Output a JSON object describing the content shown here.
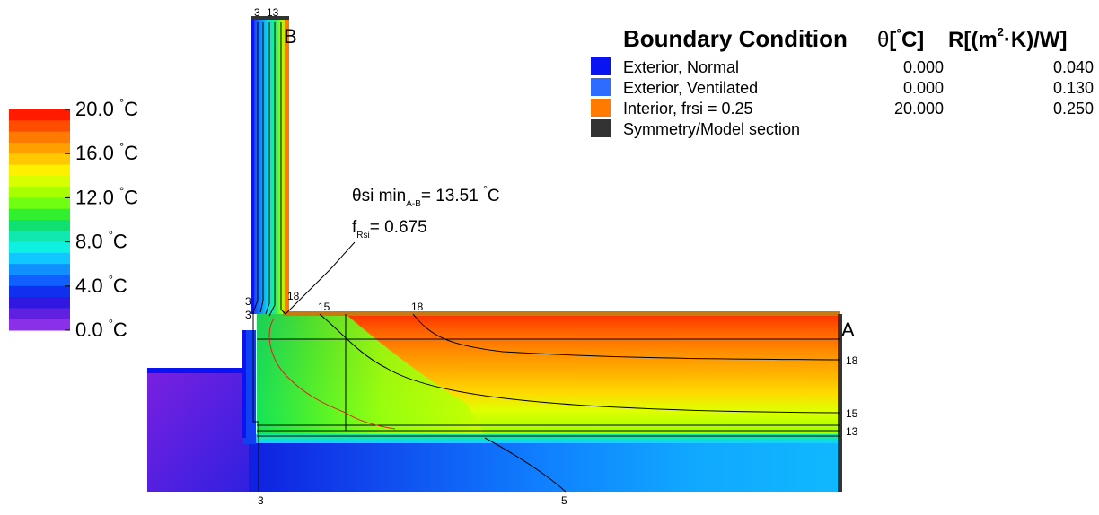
{
  "legend": {
    "header": {
      "title": "Boundary Condition",
      "theta_symbol": "θ",
      "theta_unit_open": "[",
      "theta_unit_deg": "°",
      "theta_unit_close": "C]",
      "r_label_a": "R[(m",
      "r_label_sup": "2",
      "r_label_b": "·K)/W]"
    },
    "rows": [
      {
        "name": "Exterior, Normal",
        "theta": "0.000",
        "r": "0.040",
        "color": "#0a14f0"
      },
      {
        "name": "Exterior, Ventilated",
        "theta": "0.000",
        "r": "0.130",
        "color": "#2e6cff"
      },
      {
        "name": "Interior, frsi = 0.25",
        "theta": "20.000",
        "r": "0.250",
        "color": "#ff7a00"
      },
      {
        "name": "Symmetry/Model section",
        "theta": "",
        "r": "",
        "color": "#333333"
      }
    ]
  },
  "color_scale": {
    "labels": [
      {
        "value": "20.0",
        "unit": "C",
        "deg": "°"
      },
      {
        "value": "16.0",
        "unit": "C",
        "deg": "°"
      },
      {
        "value": "12.0",
        "unit": "C",
        "deg": "°"
      },
      {
        "value": "8.0",
        "unit": "C",
        "deg": "°"
      },
      {
        "value": "4.0",
        "unit": "C",
        "deg": "°"
      },
      {
        "value": "0.0",
        "unit": "C",
        "deg": "°"
      }
    ],
    "colors": [
      "#ff1a00",
      "#ff4d00",
      "#ff7a00",
      "#ffa000",
      "#ffc800",
      "#fff000",
      "#d8ff00",
      "#a8ff00",
      "#70ff10",
      "#30f030",
      "#10e070",
      "#10e8b0",
      "#10f0e0",
      "#10c8ff",
      "#1090ff",
      "#1060ff",
      "#1030f0",
      "#3018e0",
      "#6020e0",
      "#8a30e8"
    ]
  },
  "annotation": {
    "theta_si": "θsi min",
    "theta_sub": "A-B",
    "theta_value": "= 13.51 ",
    "theta_deg": "°",
    "theta_unit": "C",
    "f_label": "f",
    "f_sub": "Rsi",
    "f_value": "= 0.675"
  },
  "points": {
    "a": "A",
    "b": "B"
  },
  "isotherm_labels": {
    "top_3": "3",
    "top_13": "13",
    "left_3a": "3",
    "left_3b": "3",
    "corner_18": "18",
    "top_15": "15",
    "top_18": "18",
    "right_18": "18",
    "right_15": "15",
    "right_13": "13",
    "bottom_3": "3",
    "bottom_5": "5"
  }
}
